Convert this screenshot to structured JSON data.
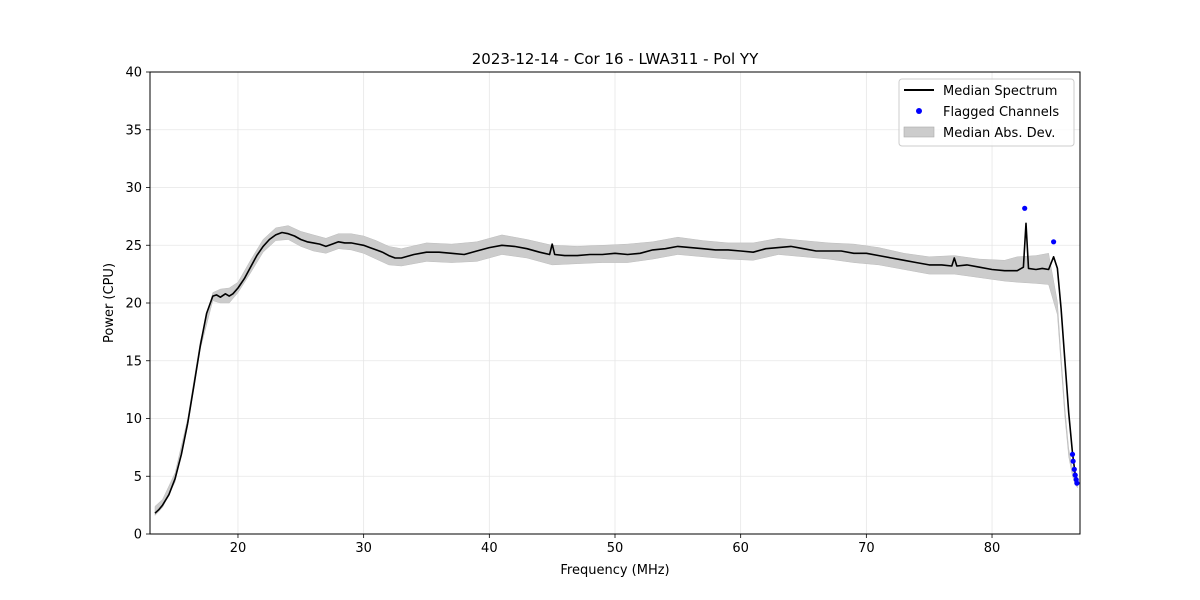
{
  "chart_data": {
    "type": "line",
    "title": "2023-12-14 - Cor 16 - LWA311 - Pol YY",
    "xlabel": "Frequency (MHz)",
    "ylabel": "Power (CPU)",
    "xlim": [
      13,
      87
    ],
    "ylim": [
      0,
      40
    ],
    "xticks": [
      20,
      30,
      40,
      50,
      60,
      70,
      80
    ],
    "yticks": [
      0,
      5,
      10,
      15,
      20,
      25,
      30,
      35,
      40
    ],
    "grid": true,
    "legend_position": "top-right",
    "legend": [
      {
        "label": "Median Spectrum",
        "kind": "line",
        "color": "#000000"
      },
      {
        "label": "Flagged Channels",
        "kind": "point",
        "color": "#0000ff"
      },
      {
        "label": "Median Abs. Dev.",
        "kind": "patch",
        "color": "#cccccc"
      }
    ],
    "series": [
      {
        "name": "Median Spectrum",
        "color": "#000000",
        "x": [
          13.4,
          13.7,
          14.0,
          14.5,
          15.0,
          15.5,
          16.0,
          16.5,
          17.0,
          17.5,
          18.0,
          18.3,
          18.6,
          19.0,
          19.3,
          19.6,
          20.0,
          20.5,
          21.0,
          21.5,
          22.0,
          22.5,
          23.0,
          23.5,
          24.0,
          24.5,
          25.0,
          25.5,
          26.0,
          26.5,
          27.0,
          27.5,
          28.0,
          28.5,
          29.0,
          29.5,
          30.0,
          30.5,
          31.0,
          31.5,
          32.0,
          32.5,
          33.0,
          34.0,
          35.0,
          36.0,
          37.0,
          38.0,
          39.0,
          40.0,
          41.0,
          42.0,
          43.0,
          44.0,
          44.8,
          45.0,
          45.2,
          46.0,
          47.0,
          48.0,
          49.0,
          50.0,
          51.0,
          52.0,
          53.0,
          54.0,
          55.0,
          56.0,
          57.0,
          58.0,
          59.0,
          60.0,
          61.0,
          62.0,
          63.0,
          64.0,
          65.0,
          66.0,
          67.0,
          68.0,
          69.0,
          70.0,
          71.0,
          72.0,
          73.0,
          74.0,
          75.0,
          76.0,
          76.8,
          77.0,
          77.2,
          78.0,
          79.0,
          80.0,
          81.0,
          82.0,
          82.5,
          82.7,
          82.9,
          83.5,
          84.0,
          84.5,
          84.9,
          85.2,
          85.5,
          85.8,
          86.1,
          86.4,
          86.6,
          86.8
        ],
        "y": [
          1.8,
          2.1,
          2.5,
          3.4,
          4.8,
          6.9,
          9.6,
          12.9,
          16.3,
          19.1,
          20.6,
          20.7,
          20.5,
          20.8,
          20.6,
          20.8,
          21.3,
          22.1,
          23.1,
          24.1,
          24.9,
          25.5,
          25.9,
          26.1,
          26.0,
          25.8,
          25.5,
          25.3,
          25.2,
          25.1,
          24.9,
          25.1,
          25.3,
          25.2,
          25.2,
          25.1,
          25.0,
          24.8,
          24.6,
          24.4,
          24.1,
          23.9,
          23.9,
          24.2,
          24.4,
          24.4,
          24.3,
          24.2,
          24.5,
          24.8,
          25.0,
          24.9,
          24.7,
          24.4,
          24.2,
          25.1,
          24.2,
          24.1,
          24.1,
          24.2,
          24.2,
          24.3,
          24.2,
          24.3,
          24.6,
          24.7,
          24.9,
          24.8,
          24.7,
          24.6,
          24.6,
          24.5,
          24.4,
          24.7,
          24.8,
          24.9,
          24.7,
          24.5,
          24.5,
          24.5,
          24.3,
          24.3,
          24.1,
          23.9,
          23.7,
          23.5,
          23.3,
          23.3,
          23.2,
          23.9,
          23.2,
          23.3,
          23.1,
          22.9,
          22.8,
          22.8,
          23.1,
          26.9,
          23.0,
          22.9,
          23.0,
          22.9,
          24.0,
          23.0,
          19.5,
          15.0,
          10.5,
          7.0,
          5.3,
          4.6
        ]
      }
    ],
    "band": {
      "name": "Median Abs. Dev.",
      "color": "#cccccc",
      "x": [
        13.4,
        14.0,
        15.0,
        16.0,
        17.0,
        18.0,
        18.6,
        19.3,
        20.0,
        21.0,
        22.0,
        23.0,
        24.0,
        25.0,
        26.0,
        27.0,
        28.0,
        29.0,
        30.0,
        31.0,
        32.0,
        33.0,
        35.0,
        37.0,
        39.0,
        41.0,
        43.0,
        45.0,
        47.0,
        49.0,
        51.0,
        53.0,
        55.0,
        57.0,
        59.0,
        61.0,
        63.0,
        65.0,
        67.0,
        69.0,
        71.0,
        73.0,
        75.0,
        77.0,
        79.0,
        81.0,
        82.0,
        83.5,
        84.5,
        85.2,
        85.5,
        85.8,
        86.1,
        86.4,
        86.6,
        86.8
      ],
      "lower": [
        1.6,
        2.3,
        4.5,
        9.3,
        16.0,
        20.2,
        20.0,
        20.0,
        20.9,
        22.6,
        24.4,
        25.4,
        25.5,
        24.9,
        24.5,
        24.3,
        24.7,
        24.6,
        24.3,
        23.8,
        23.3,
        23.2,
        23.6,
        23.5,
        23.6,
        24.2,
        23.9,
        23.3,
        23.4,
        23.5,
        23.5,
        23.8,
        24.2,
        24.0,
        23.8,
        23.7,
        24.2,
        24.0,
        23.8,
        23.5,
        23.3,
        22.9,
        22.5,
        22.5,
        22.2,
        21.9,
        21.8,
        21.7,
        21.6,
        19.0,
        14.6,
        10.1,
        6.7,
        5.0,
        4.3,
        4.0
      ],
      "upper": [
        2.4,
        3.0,
        5.3,
        10.0,
        16.7,
        20.9,
        21.2,
        21.3,
        21.8,
        23.7,
        25.5,
        26.5,
        26.7,
        26.2,
        25.9,
        25.6,
        26.0,
        26.0,
        25.8,
        25.4,
        24.9,
        24.7,
        25.2,
        25.1,
        25.3,
        25.9,
        25.5,
        25.0,
        24.9,
        25.0,
        25.1,
        25.3,
        25.7,
        25.4,
        25.2,
        25.2,
        25.6,
        25.4,
        25.2,
        25.1,
        24.8,
        24.3,
        24.0,
        24.1,
        23.8,
        23.7,
        24.0,
        24.1,
        24.3,
        20.1,
        15.4,
        10.9,
        7.4,
        5.7,
        5.0,
        4.7
      ]
    },
    "flagged": {
      "name": "Flagged Channels",
      "color": "#0000ff",
      "points": [
        [
          82.6,
          28.2
        ],
        [
          84.9,
          25.3
        ],
        [
          86.4,
          6.9
        ],
        [
          86.45,
          6.3
        ],
        [
          86.55,
          5.6
        ],
        [
          86.62,
          5.1
        ],
        [
          86.7,
          4.7
        ],
        [
          86.75,
          4.4
        ]
      ]
    }
  }
}
